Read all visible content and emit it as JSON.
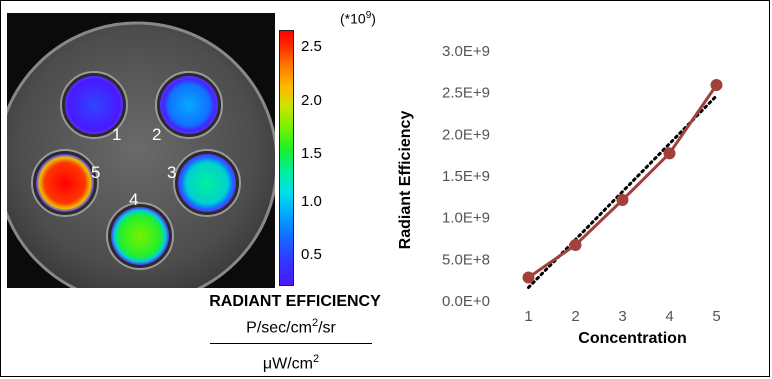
{
  "imaging": {
    "wells": [
      {
        "label": "1",
        "intensity": 0.1
      },
      {
        "label": "2",
        "intensity": 0.28
      },
      {
        "label": "3",
        "intensity": 0.45
      },
      {
        "label": "4",
        "intensity": 0.62
      },
      {
        "label": "5",
        "intensity": 1.0
      }
    ]
  },
  "colorbar": {
    "multiplier_base": "(*10",
    "multiplier_exp": "9",
    "multiplier_close": ")",
    "ticks": [
      "2.5",
      "2.0",
      "1.5",
      "1.0",
      "0.5"
    ],
    "title": "RADIANT EFFICIENCY",
    "unit_numerator_base": "P/sec/cm",
    "unit_numerator_exp": "2",
    "unit_numerator_tail": "/sr",
    "unit_denominator_base": "μW/cm",
    "unit_denominator_exp": "2"
  },
  "chart_data": {
    "type": "line",
    "x": [
      1,
      2,
      3,
      4,
      5
    ],
    "categories": [
      "1",
      "2",
      "3",
      "4",
      "5"
    ],
    "series": [
      {
        "values": [
          270000000,
          660000000,
          1200000000,
          1760000000,
          2580000000
        ],
        "color": "#a0413c",
        "trendline": "dotted-linear"
      }
    ],
    "trendline": {
      "start": [
        1,
        150000000
      ],
      "end": [
        5,
        2450000000
      ],
      "color": "#000000"
    },
    "ylim": [
      0,
      3000000000
    ],
    "yticks": [
      "0.0E+0",
      "5.0E+8",
      "1.0E+9",
      "1.5E+9",
      "2.0E+9",
      "2.5E+9",
      "3.0E+9"
    ],
    "xlabel": "Concentration",
    "ylabel": "Radiant Efficiency",
    "grid": false
  }
}
